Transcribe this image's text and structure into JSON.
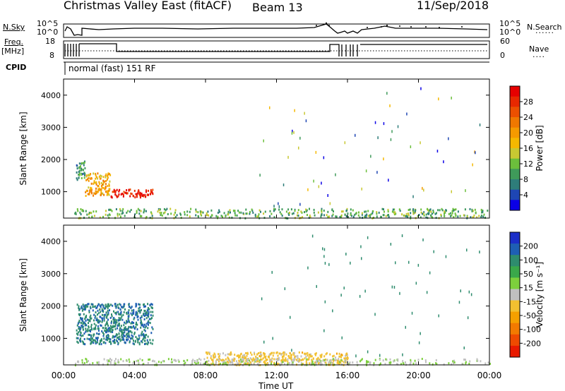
{
  "header": {
    "title": "Christmas Valley East (fitACF)",
    "beam": "Beam 13",
    "date": "11/Sep/2018"
  },
  "strip_labels": {
    "nsky": "N.Sky",
    "nsky_ticks": [
      "10^5",
      "10^0"
    ],
    "nsearch": "N.Search",
    "nsearch_ticks": [
      "10^5",
      "10^0"
    ],
    "freq_label": "Freq.",
    "freq_unit": "[MHz]",
    "freq_ticks": [
      "18",
      "8"
    ],
    "nave": "Nave",
    "nave_ticks": [
      "60",
      "0"
    ],
    "cpid": "CPID",
    "cpid_text": "normal (fast) 151 RF"
  },
  "axes": {
    "xlabel": "Time UT",
    "xticks": [
      "00:00",
      "04:00",
      "08:00",
      "12:00",
      "16:00",
      "20:00",
      "00:00"
    ],
    "ylabel": "Slant Range [km]",
    "yticks": [
      "1000",
      "2000",
      "3000",
      "4000"
    ]
  },
  "colorbars": {
    "power": {
      "label": "Power [dB]",
      "ticks": [
        "4",
        "8",
        "12",
        "16",
        "20",
        "24",
        "28"
      ],
      "colors": [
        "#0a00e6",
        "#1e46b4",
        "#2e7d7a",
        "#3f9a5a",
        "#6cbf3c",
        "#c8c832",
        "#f5b800",
        "#f59a00",
        "#f07800",
        "#ec5000",
        "#e82800",
        "#e60000"
      ]
    },
    "velocity": {
      "label": "Velocity [m s⁻¹]",
      "ticks": [
        "200",
        "100",
        "50",
        "15",
        "-15",
        "-50",
        "-100",
        "-200"
      ],
      "colors": [
        "#1b2fc8",
        "#1e5fb4",
        "#2e8c6e",
        "#3aa84a",
        "#7dd03c",
        "#c0c0c0",
        "#f2c030",
        "#f5a000",
        "#f27a00",
        "#ee4a00",
        "#e81a00"
      ]
    }
  },
  "chart_data": [
    {
      "type": "heatmap",
      "title": "Christmas Valley East (fitACF) Beam 13",
      "quantity": "Power",
      "unit": "dB",
      "xlabel": "Time UT",
      "ylabel": "Slant Range [km]",
      "xlim": [
        0,
        24
      ],
      "ylim": [
        180,
        4500
      ],
      "colorbar_range": [
        0,
        30
      ],
      "features": [
        {
          "t_start": 0.7,
          "t_end": 1.2,
          "range_start": 1400,
          "range_end": 2000,
          "level": 8
        },
        {
          "t_start": 1.2,
          "t_end": 2.6,
          "range_start": 900,
          "range_end": 1600,
          "level": 18
        },
        {
          "t_start": 2.6,
          "t_end": 5.0,
          "range_start": 850,
          "range_end": 1100,
          "level": 28
        },
        {
          "t_start": 0.6,
          "t_end": 24.0,
          "range_start": 200,
          "range_end": 500,
          "level": 10
        }
      ]
    },
    {
      "type": "heatmap",
      "title": "Christmas Valley East (fitACF) Beam 13",
      "quantity": "Velocity",
      "unit": "m/s",
      "xlabel": "Time UT",
      "ylabel": "Slant Range [km]",
      "xlim": [
        0,
        24
      ],
      "ylim": [
        180,
        4500
      ],
      "colorbar_range": [
        -250,
        250
      ],
      "features": [
        {
          "t_start": 0.7,
          "t_end": 5.0,
          "range_start": 850,
          "range_end": 2100,
          "level": 150
        },
        {
          "t_start": 8.0,
          "t_end": 16.0,
          "range_start": 200,
          "range_end": 600,
          "level": -40
        },
        {
          "t_start": 0.6,
          "t_end": 24.0,
          "range_start": 200,
          "range_end": 400,
          "level": 20
        }
      ]
    }
  ]
}
